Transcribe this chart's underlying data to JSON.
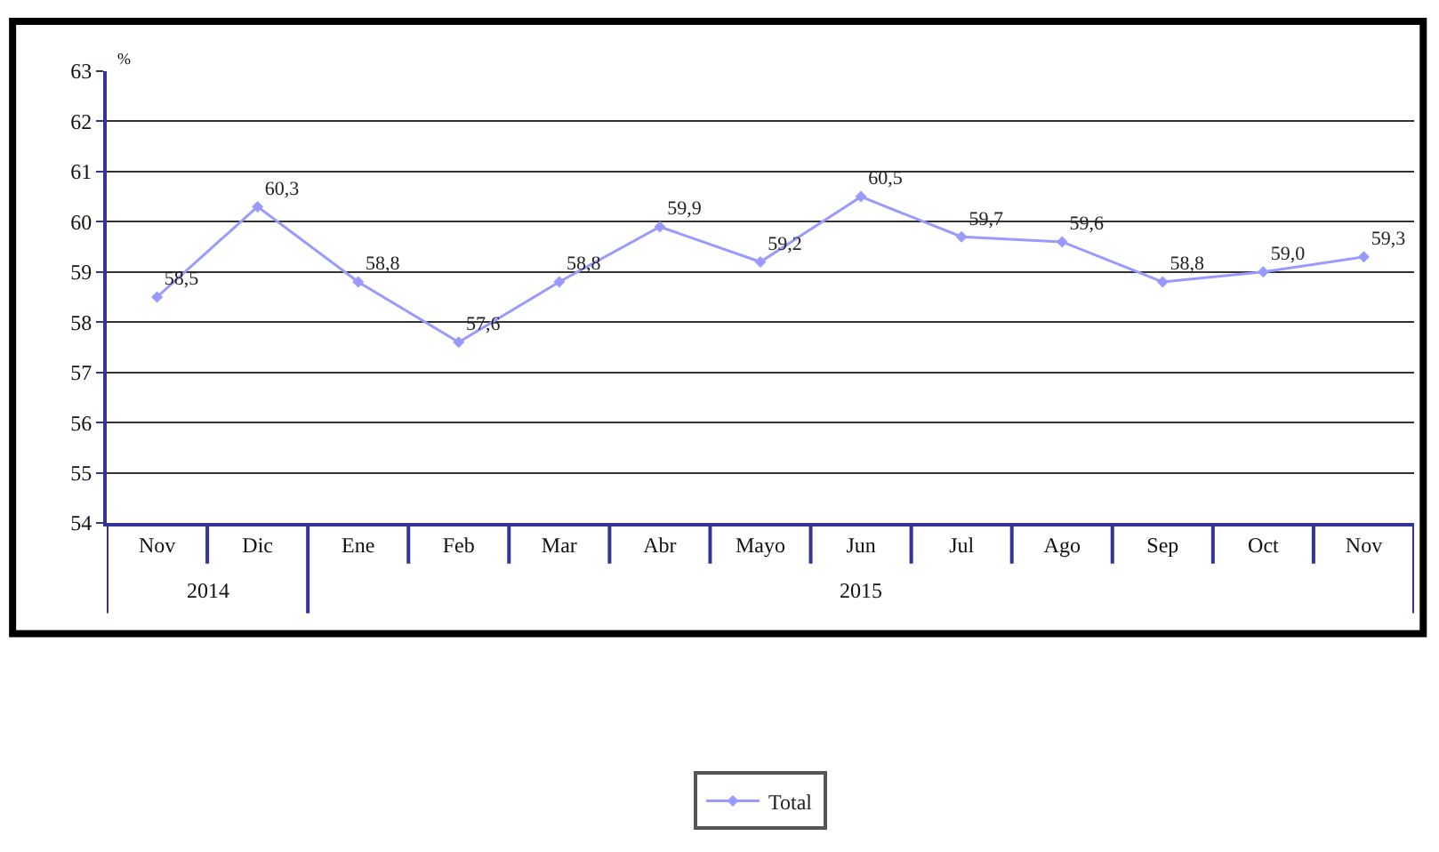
{
  "chart_data": {
    "type": "line",
    "ylabel": "%",
    "categories": [
      "Nov",
      "Dic",
      "Ene",
      "Feb",
      "Mar",
      "Abr",
      "Mayo",
      "Jun",
      "Jul",
      "Ago",
      "Sep",
      "Oct",
      "Nov"
    ],
    "series": [
      {
        "name": "Total",
        "color": "#9999ff",
        "values": [
          58.5,
          60.3,
          58.8,
          57.6,
          58.8,
          59.9,
          59.2,
          60.5,
          59.7,
          59.6,
          58.8,
          59.0,
          59.3
        ],
        "value_labels": [
          "58,5",
          "60,3",
          "58,8",
          "57,6",
          "58,8",
          "59,9",
          "59,2",
          "60,5",
          "59,7",
          "59,6",
          "58,8",
          "59,0",
          "59,3"
        ]
      }
    ],
    "annotations": [
      "2014",
      "2015"
    ],
    "ylim": [
      54,
      63
    ],
    "yticks": [
      54,
      55,
      56,
      57,
      58,
      59,
      60,
      61,
      62,
      63
    ],
    "grid": "y",
    "legend": "bottom",
    "marker": "diamond",
    "line_style": "solid"
  }
}
